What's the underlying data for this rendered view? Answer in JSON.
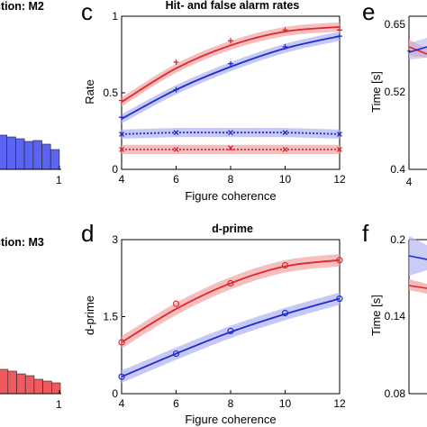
{
  "colors": {
    "red": "#e0262b",
    "blue": "#1f2bd1",
    "red_band": "#f1a9ab",
    "blue_band": "#b3b7ef",
    "hist_blue": "#5a63f2",
    "hist_red": "#f05a5e"
  },
  "panel_a": {
    "title": "ction: M2",
    "tick_right": "1",
    "bars": [
      0.38,
      0.36,
      0.34,
      0.31,
      0.32,
      0.28,
      0.22
    ]
  },
  "panel_b": {
    "title": "ction: M3",
    "tick_right": "1",
    "bars": [
      0.34,
      0.3,
      0.28,
      0.27,
      0.25,
      0.22,
      0.2,
      0.16,
      0.14,
      0.12
    ]
  },
  "panel_c": {
    "letter": "c",
    "chart_data": {
      "type": "line",
      "title": "Hit- and false alarm rates",
      "xlabel": "Figure coherence",
      "ylabel": "Rate",
      "xlim": [
        4,
        12
      ],
      "ylim": [
        0,
        1
      ],
      "xticks": [
        "4",
        "6",
        "8",
        "10",
        "12"
      ],
      "yticks": [
        "0",
        "0.5",
        "1"
      ],
      "series": [
        {
          "color": "red",
          "marker": "+",
          "x": [
            4,
            6,
            8,
            10,
            12
          ],
          "y": [
            0.45,
            0.7,
            0.84,
            0.91,
            0.91
          ],
          "fit": [
            0.44,
            0.66,
            0.81,
            0.9,
            0.93
          ],
          "style": "solid"
        },
        {
          "color": "blue",
          "marker": "+",
          "x": [
            4,
            6,
            8,
            10,
            12
          ],
          "y": [
            0.34,
            0.52,
            0.69,
            0.8,
            0.87
          ],
          "fit": [
            0.33,
            0.52,
            0.67,
            0.79,
            0.87
          ],
          "style": "solid"
        },
        {
          "color": "blue",
          "marker": "x",
          "x": [
            4,
            6,
            8,
            10,
            12
          ],
          "y": [
            0.23,
            0.24,
            0.24,
            0.24,
            0.23
          ],
          "fit": [
            0.23,
            0.24,
            0.24,
            0.24,
            0.23
          ],
          "style": "dotted"
        },
        {
          "color": "red",
          "marker": "x",
          "x": [
            4,
            6,
            8,
            10,
            12
          ],
          "y": [
            0.13,
            0.13,
            0.14,
            0.13,
            0.13
          ],
          "fit": [
            0.13,
            0.13,
            0.13,
            0.13,
            0.13
          ],
          "style": "dotted"
        }
      ]
    }
  },
  "panel_d": {
    "letter": "d",
    "chart_data": {
      "type": "line",
      "title": "d-prime",
      "xlabel": "Figure coherence",
      "ylabel": "d-prime",
      "xlim": [
        4,
        12
      ],
      "ylim": [
        0,
        3
      ],
      "xticks": [
        "4",
        "6",
        "8",
        "10",
        "12"
      ],
      "yticks": [
        "0",
        "1.5",
        "3"
      ],
      "series": [
        {
          "color": "red",
          "marker": "o",
          "x": [
            4,
            6,
            8,
            10,
            12
          ],
          "y": [
            1.0,
            1.75,
            2.15,
            2.5,
            2.6
          ],
          "fit": [
            1.0,
            1.65,
            2.15,
            2.48,
            2.6
          ]
        },
        {
          "color": "blue",
          "marker": "o",
          "x": [
            4,
            6,
            8,
            10,
            12
          ],
          "y": [
            0.33,
            0.78,
            1.22,
            1.57,
            1.85
          ],
          "fit": [
            0.33,
            0.78,
            1.2,
            1.55,
            1.85
          ]
        }
      ]
    }
  },
  "panel_e": {
    "letter": "e",
    "ylabel": "Time [s]",
    "yticks": [
      "0.4",
      "0.52",
      "0.65"
    ],
    "xtick": "4"
  },
  "panel_f": {
    "letter": "f",
    "ylabel": "Time [s]",
    "yticks": [
      "0.08",
      "0.14",
      "0.2"
    ],
    "xtick": "4"
  }
}
